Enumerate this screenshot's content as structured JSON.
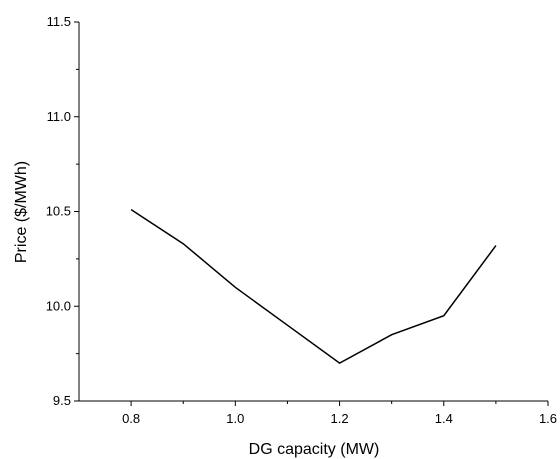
{
  "chart_data": {
    "type": "line",
    "title": "",
    "xlabel": "DG capacity (MW)",
    "ylabel": "Price ($/MWh)",
    "xlim": [
      0.7,
      1.6
    ],
    "ylim": [
      9.5,
      11.5
    ],
    "x_ticks": [
      0.8,
      1.0,
      1.2,
      1.4,
      1.6
    ],
    "x_tick_labels": [
      "0.8",
      "1.0",
      "1.2",
      "1.4",
      "1.6"
    ],
    "y_ticks": [
      9.5,
      10.0,
      10.5,
      11.0,
      11.5
    ],
    "y_tick_labels": [
      "9.5",
      "10.0",
      "10.5",
      "11.0",
      "11.5"
    ],
    "grid": false,
    "legend": "none",
    "series": [
      {
        "color": "#000000",
        "x": [
          0.8,
          0.9,
          1.0,
          1.1,
          1.2,
          1.3,
          1.4,
          1.5
        ],
        "y": [
          10.51,
          10.33,
          10.1,
          9.9,
          9.7,
          9.85,
          9.95,
          10.32
        ]
      }
    ]
  }
}
